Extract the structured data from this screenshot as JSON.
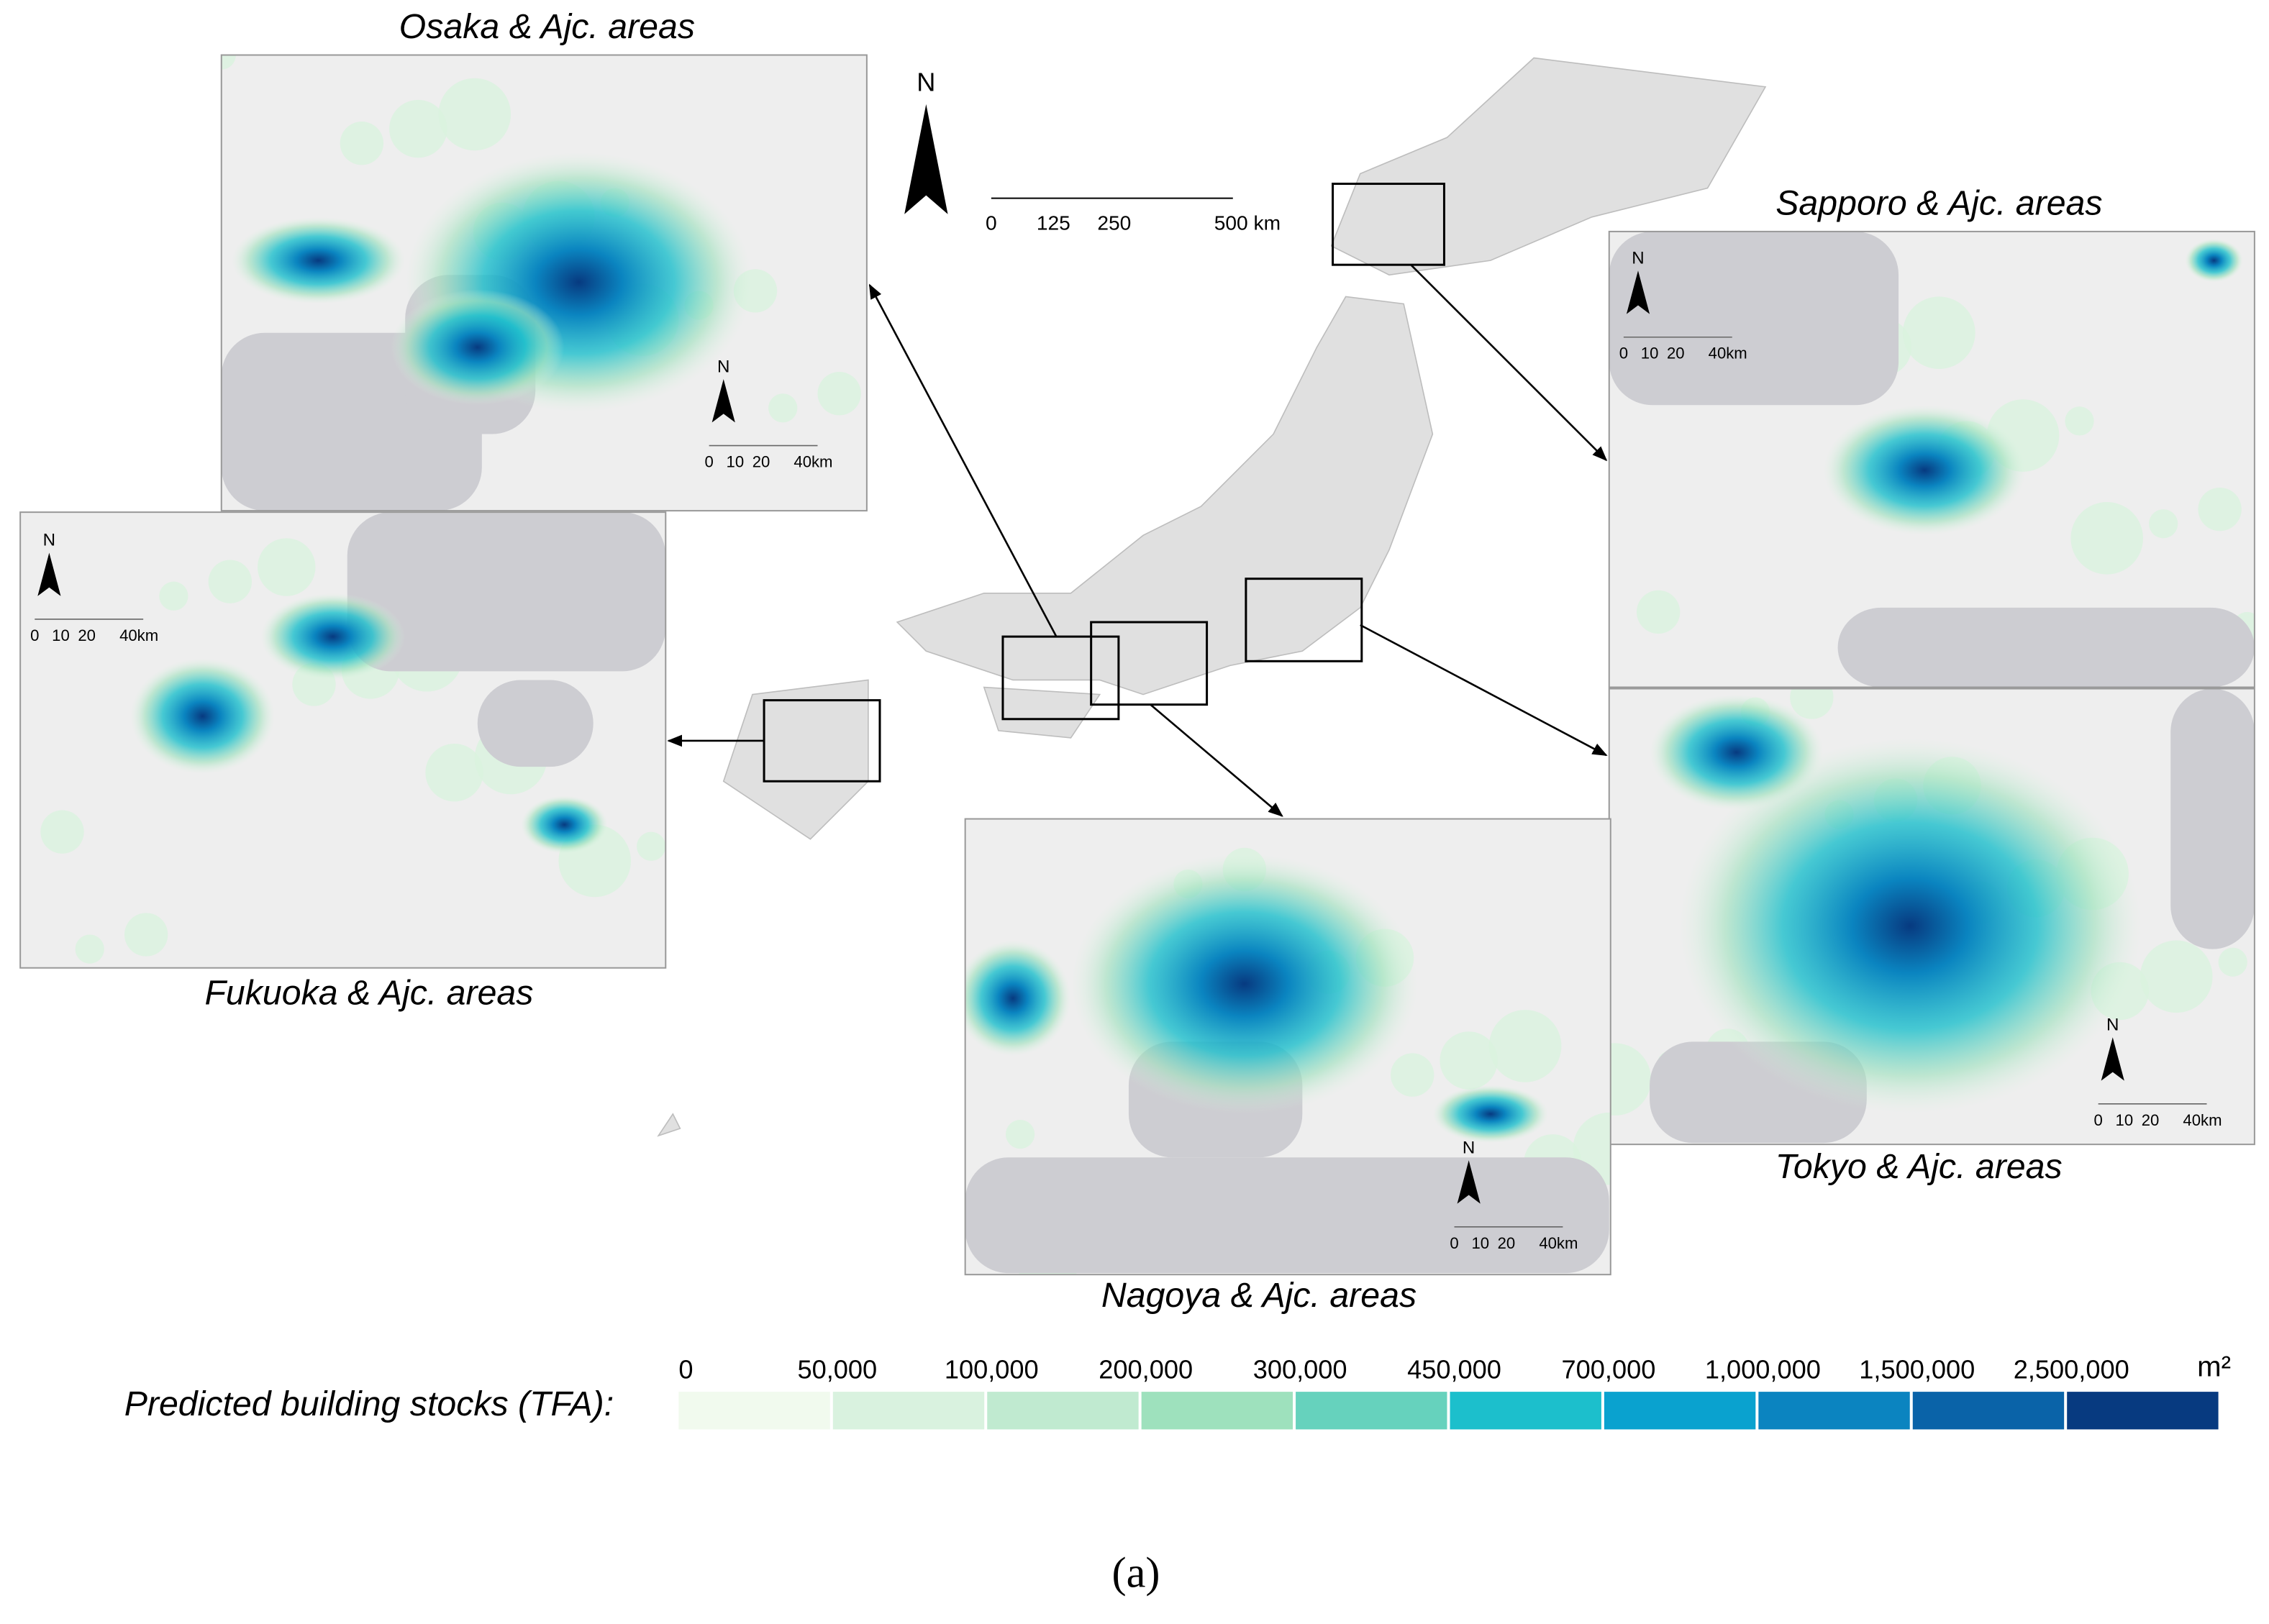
{
  "main_map": {
    "north": "N",
    "scale": [
      "0",
      "125",
      "250",
      "500 km"
    ]
  },
  "insets": [
    {
      "title": "Osaka & Ajc. areas",
      "north": "N",
      "scale": [
        "0",
        "10",
        "20",
        "40km"
      ]
    },
    {
      "title": "Sapporo & Ajc. areas",
      "north": "N",
      "scale": [
        "0",
        "10",
        "20",
        "40km"
      ]
    },
    {
      "title": "Fukuoka & Ajc. areas",
      "north": "N",
      "scale": [
        "0",
        "10",
        "20",
        "40km"
      ]
    },
    {
      "title": "Tokyo & Ajc. areas",
      "north": "N",
      "scale": [
        "0",
        "10",
        "20",
        "40km"
      ]
    },
    {
      "title": "Nagoya & Ajc. areas",
      "north": "N",
      "scale": [
        "0",
        "10",
        "20",
        "40km"
      ]
    }
  ],
  "legend": {
    "title": "Predicted building stocks (TFA):",
    "labels": [
      "0",
      "50,000",
      "100,000",
      "200,000",
      "300,000",
      "450,000",
      "700,000",
      "1,000,000",
      "1,500,000",
      "2,500,000"
    ],
    "unit": "m²",
    "colors": [
      "#f1faee",
      "#d9f2df",
      "#c0ead0",
      "#9ee1bd",
      "#66d2bd",
      "#1cbfcc",
      "#0aa2cf",
      "#0b84c0",
      "#0a63a8",
      "#073a80"
    ]
  },
  "caption": "(a)"
}
